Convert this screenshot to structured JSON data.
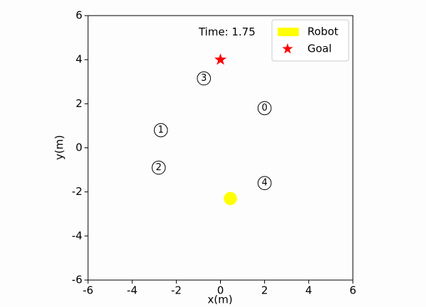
{
  "chart_data": {
    "type": "scatter",
    "annotation": {
      "text": "Time: 1.75",
      "x": 0.3,
      "y": 5.25
    },
    "xlabel": "x(m)",
    "ylabel": "y(m)",
    "xlim": [
      -6,
      6
    ],
    "ylim": [
      -6,
      6
    ],
    "xticks": [
      -6,
      -4,
      -2,
      0,
      2,
      4,
      6
    ],
    "yticks": [
      -6,
      -4,
      -2,
      0,
      2,
      4,
      6
    ],
    "legend": "upper right",
    "series": [
      {
        "color": "#000000",
        "x": [
          2.0,
          -2.7,
          -2.8,
          -0.75,
          2.0
        ],
        "y": [
          1.8,
          0.8,
          -0.9,
          3.15,
          -1.6
        ],
        "labels": [
          "0",
          "1",
          "2",
          "3",
          "4"
        ],
        "radius": 0.3,
        "marker": "circle"
      },
      {
        "name": "Robot",
        "color": "#ffff00",
        "x": [
          0.45
        ],
        "y": [
          -2.3
        ],
        "radius": 0.3,
        "marker": "disc"
      },
      {
        "name": "Goal",
        "color": "#ff0000",
        "x": [
          0
        ],
        "y": [
          4
        ],
        "marker": "star"
      }
    ]
  }
}
